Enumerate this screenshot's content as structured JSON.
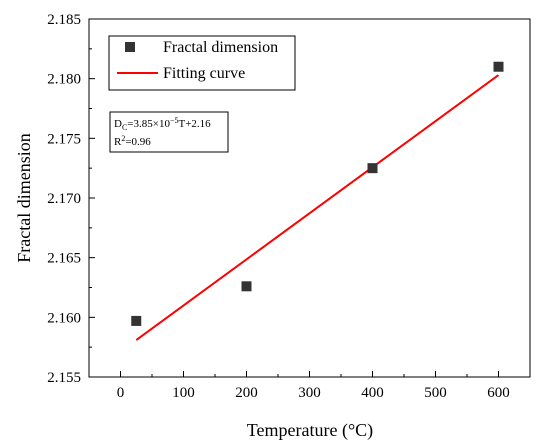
{
  "chart_data": {
    "type": "scatter",
    "xlabel": "Temperature (°C)",
    "ylabel": "Fractal dimension",
    "xlim": [
      -50,
      650
    ],
    "ylim": [
      2.155,
      2.185
    ],
    "xticks": [
      0,
      100,
      200,
      300,
      400,
      500,
      600
    ],
    "yticks": [
      2.155,
      2.16,
      2.165,
      2.17,
      2.175,
      2.18,
      2.185
    ],
    "xtick_labels": [
      "0",
      "100",
      "200",
      "300",
      "400",
      "500",
      "600"
    ],
    "ytick_labels": [
      "2.155",
      "2.160",
      "2.165",
      "2.170",
      "2.175",
      "2.180",
      "2.185"
    ],
    "grid": false,
    "legend_position": "top-left",
    "series": [
      {
        "name": "Fractal dimension",
        "kind": "scatter",
        "marker": "square",
        "color": "#333333",
        "x": [
          25,
          200,
          400,
          600
        ],
        "y": [
          2.1597,
          2.1626,
          2.1725,
          2.181
        ]
      },
      {
        "name": "Fitting curve",
        "kind": "line",
        "color": "#ff0000",
        "x": [
          25,
          600
        ],
        "y": [
          2.1581,
          2.1803
        ]
      }
    ],
    "annotation": {
      "equation_prefix": "D",
      "equation_sub": "C",
      "equation_mid": "=3.85×10",
      "equation_sup": "−5",
      "equation_suffix": "T+2.16",
      "r2_prefix": "R",
      "r2_sup": "2",
      "r2_suffix": "=0.96"
    }
  }
}
